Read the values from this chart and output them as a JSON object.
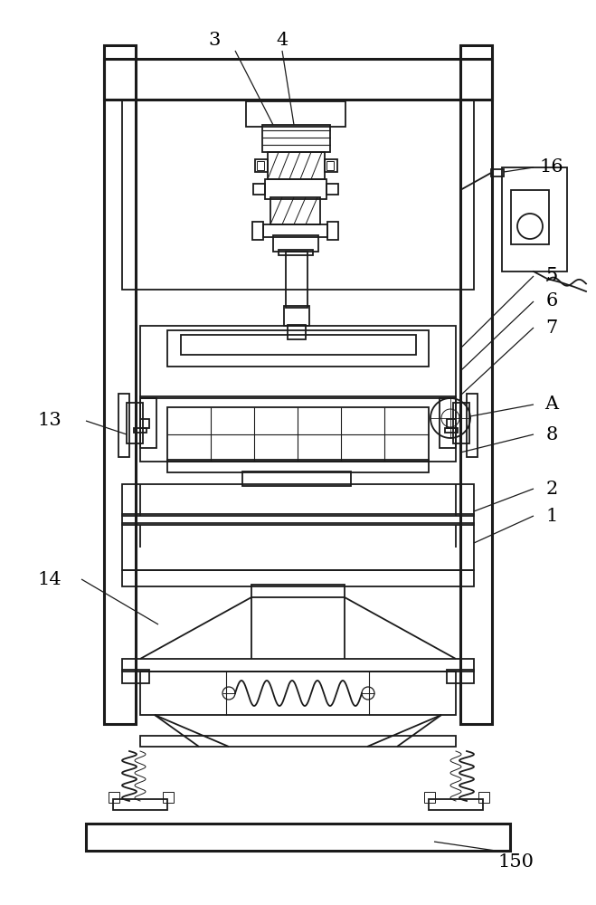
{
  "bg_color": "#ffffff",
  "lc": "#1a1a1a",
  "lw": 1.3,
  "tlw": 2.2,
  "label_fs": 15,
  "fig_width": 6.59,
  "fig_height": 10.0
}
